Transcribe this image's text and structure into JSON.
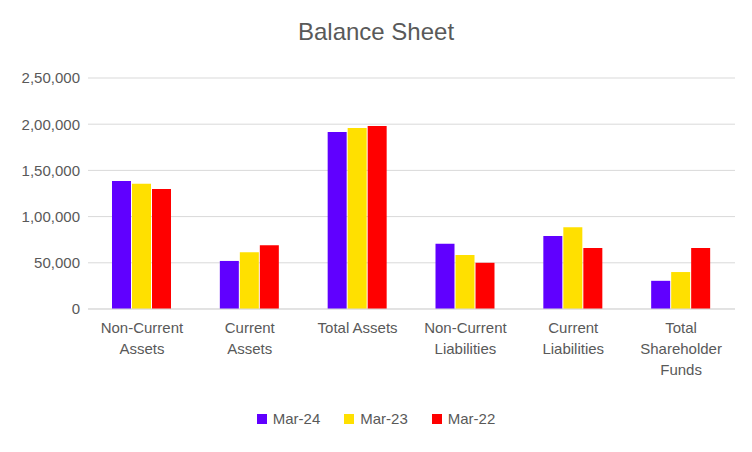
{
  "chart_data": {
    "type": "bar",
    "title": "Balance Sheet",
    "categories": [
      "Non-Current Assets",
      "Current Assets",
      "Total Assets",
      "Non-Current Liabilities",
      "Current Liabilities",
      "Total Shareholder Funds"
    ],
    "series": [
      {
        "name": "Mar-24",
        "color": "#6000FF",
        "values": [
          138500,
          52000,
          191500,
          70500,
          79000,
          30500
        ]
      },
      {
        "name": "Mar-23",
        "color": "#FFE000",
        "values": [
          135500,
          61500,
          196000,
          58500,
          88500,
          40000
        ]
      },
      {
        "name": "Mar-22",
        "color": "#FF0000",
        "values": [
          130000,
          69000,
          198000,
          50000,
          66000,
          66000
        ]
      }
    ],
    "ylim": [
      0,
      250000
    ],
    "yticks": [
      0,
      {
        "value": 50000,
        "label": "50,000"
      },
      {
        "value": 100000,
        "label": "1,00,000"
      },
      {
        "value": 150000,
        "label": "1,50,000"
      },
      {
        "value": 200000,
        "label": "2,00,000"
      },
      {
        "value": 250000,
        "label": "2,50,000"
      }
    ],
    "grid": true,
    "legend": "bottom"
  }
}
